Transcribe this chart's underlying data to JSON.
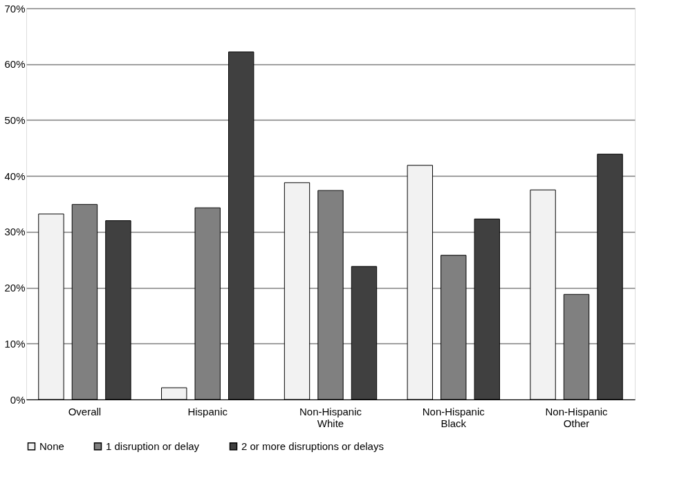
{
  "chart_data": {
    "type": "bar",
    "categories": [
      "Overall",
      "Hispanic",
      "Non-Hispanic White",
      "Non-Hispanic Black",
      "Non-Hispanic Other"
    ],
    "series": [
      {
        "name": "None",
        "color": "#f2f2f2",
        "values": [
          33.2,
          2.1,
          38.8,
          41.9,
          37.5
        ]
      },
      {
        "name": "1 disruption or delay",
        "color": "#808080",
        "values": [
          34.9,
          34.3,
          37.4,
          25.8,
          18.8
        ]
      },
      {
        "name": "2 or more disruptions or delays",
        "color": "#404040",
        "values": [
          32.0,
          62.2,
          23.8,
          32.3,
          43.9
        ]
      }
    ],
    "ylim": [
      0,
      70
    ],
    "yticks": [
      {
        "value": 0,
        "label": "0%"
      },
      {
        "value": 10,
        "label": "10%"
      },
      {
        "value": 20,
        "label": "20%"
      },
      {
        "value": 30,
        "label": "30%"
      },
      {
        "value": 40,
        "label": "40%"
      },
      {
        "value": 50,
        "label": "50%"
      },
      {
        "value": 60,
        "label": "60%"
      },
      {
        "value": 70,
        "label": "70%"
      }
    ],
    "grid": "y",
    "legend": "bottom"
  }
}
